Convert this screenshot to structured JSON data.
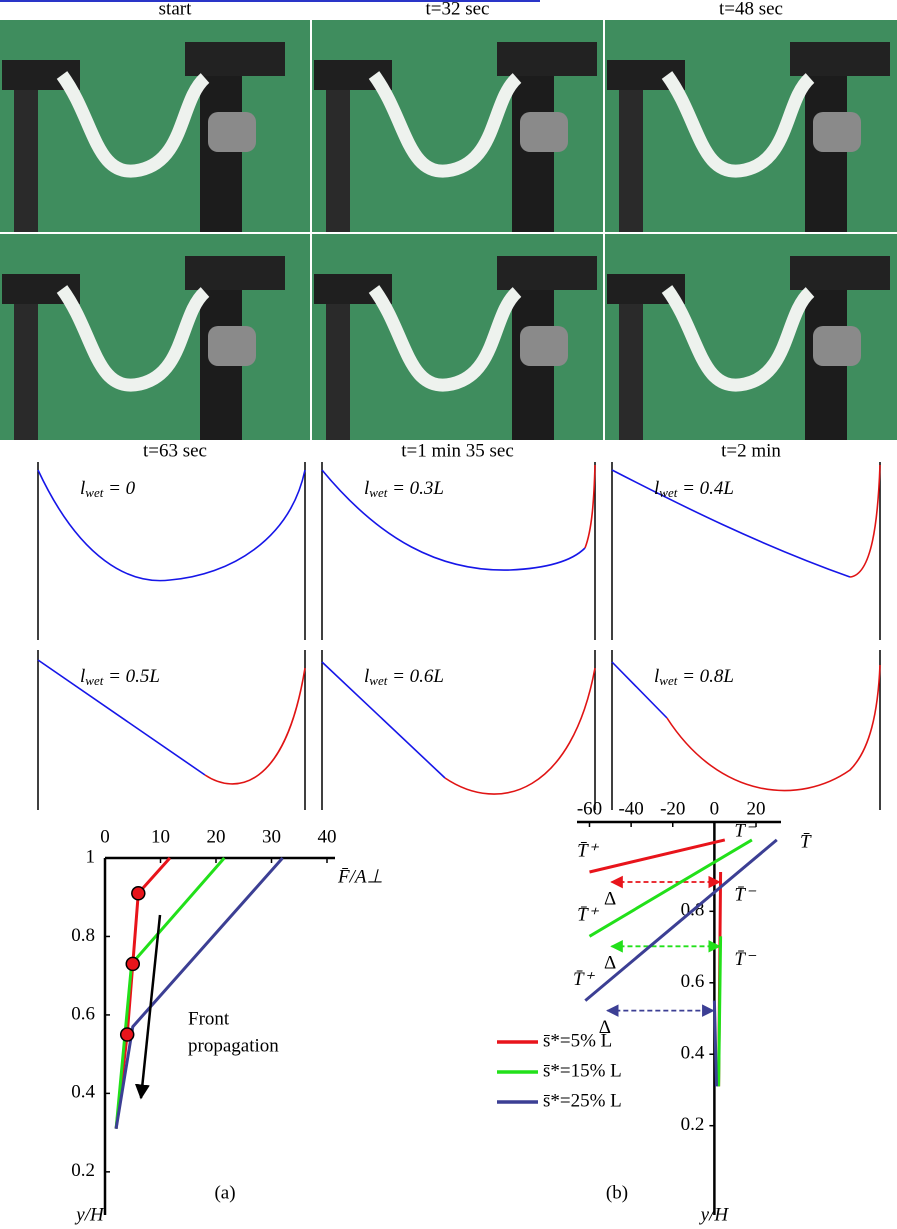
{
  "photos": {
    "captions": [
      "start",
      "t=32 sec",
      "t=48 sec",
      "t=63 sec",
      "t=1 min 35 sec",
      "t=2 min"
    ]
  },
  "simulations": [
    {
      "symbol": "l",
      "subscript": "wet",
      "value": " = 0"
    },
    {
      "symbol": "l",
      "subscript": "wet",
      "value": " = 0.3L"
    },
    {
      "symbol": "l",
      "subscript": "wet",
      "value": " = 0.4L"
    },
    {
      "symbol": "l",
      "subscript": "wet",
      "value": " = 0.5L"
    },
    {
      "symbol": "l",
      "subscript": "wet",
      "value": " = 0.6L"
    },
    {
      "symbol": "l",
      "subscript": "wet",
      "value": " = 0.8L"
    }
  ],
  "panel_a": {
    "type": "line",
    "label": "(a)",
    "x_label": "F̄/A⊥",
    "y_label": "y/H",
    "xlim": [
      0,
      40
    ],
    "xticks": [
      0,
      10,
      20,
      30,
      40
    ],
    "ylim": [
      0.09,
      1.0
    ],
    "yticks": [
      0.2,
      0.4,
      0.6,
      0.8,
      1
    ],
    "annotation": [
      "Front",
      "propagation"
    ],
    "series": [
      {
        "color": "#e8141b",
        "x": [
          2,
          4,
          5,
          6,
          11.7
        ],
        "y": [
          0.31,
          0.55,
          0.73,
          0.91,
          1.0
        ]
      },
      {
        "color": "#22e01a",
        "x": [
          2,
          4.8,
          21.5
        ],
        "y": [
          0.31,
          0.73,
          1.0
        ]
      },
      {
        "color": "#3c3f94",
        "x": [
          2,
          5,
          32
        ],
        "y": [
          0.31,
          0.57,
          1.0
        ]
      }
    ],
    "markers": {
      "color": "#e8141b",
      "x": [
        4,
        5,
        6
      ],
      "y": [
        0.55,
        0.73,
        0.91
      ]
    }
  },
  "panel_b": {
    "type": "line",
    "label": "(b)",
    "x_label": "T̄",
    "y_label": "y/H",
    "xlim": [
      -66,
      32
    ],
    "xticks": [
      -60,
      -40,
      -20,
      0,
      20
    ],
    "ylim": [
      -0.05,
      1.05
    ],
    "yticks": [
      0.2,
      0.4,
      0.6,
      0.8
    ],
    "series": [
      {
        "name": "s̄*=5% L",
        "color": "#e8141b",
        "x": [
          5,
          -60,
          null,
          3,
          2
        ],
        "y": [
          1.0,
          0.91,
          null,
          0.91,
          0.31
        ],
        "labels": {
          "plus": "T̄⁺",
          "minus": "T̄⁻",
          "delta": "Δ"
        }
      },
      {
        "name": "s̄*=15% L",
        "color": "#22e01a",
        "x": [
          18,
          -60,
          null,
          3,
          2
        ],
        "y": [
          1.0,
          0.73,
          null,
          0.73,
          0.31
        ],
        "labels": {
          "plus": "T̄⁺",
          "minus": "T̄⁻",
          "delta": "Δ"
        }
      },
      {
        "name": "s̄*=25% L",
        "color": "#3c3f94",
        "x": [
          30,
          -62,
          null,
          0,
          1
        ],
        "y": [
          1.0,
          0.55,
          null,
          0.55,
          0.31
        ],
        "labels": {
          "plus": "T̄⁺",
          "minus": "T̄⁻",
          "delta": "Δ"
        }
      }
    ]
  }
}
